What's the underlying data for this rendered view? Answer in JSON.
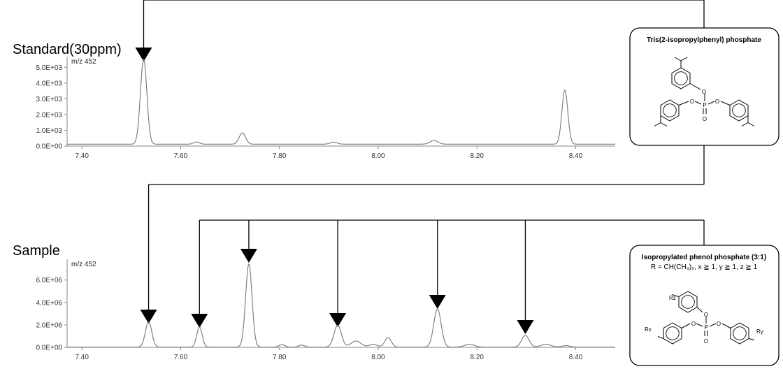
{
  "labels": {
    "standard_title": "Standard(30ppm)",
    "sample_title": "Sample"
  },
  "structures": {
    "standard": {
      "title": "Tris(2-isopropylphenyl) phosphate",
      "atoms": {
        "o": "O",
        "p": "P"
      }
    },
    "sample": {
      "title": "Isopropylated phenol phosphate (3:1)",
      "subtitle": "R = CH(CH₃)₂,  x ≧ 1,  y ≧ 1,  z ≧ 1",
      "atoms": {
        "o": "O",
        "p": "P",
        "rz": "Rz",
        "rx": "Rx",
        "ry": "Ry"
      }
    }
  },
  "chart_data": [
    {
      "type": "line",
      "panel": "standard",
      "title": "Standard(30ppm)",
      "annotation": "m/z 452",
      "xlim": [
        7.37,
        8.48
      ],
      "ylim": [
        0,
        5500
      ],
      "x_ticks": [
        "7.40",
        "7.60",
        "7.80",
        "8.00",
        "8.20",
        "8.40"
      ],
      "y_ticks": [
        "0.0E+00",
        "1.0E+03",
        "2.0E+03",
        "3.0E+03",
        "4.0E+03",
        "5.0E+03"
      ],
      "x_tick_values": [
        7.4,
        7.6,
        7.8,
        8.0,
        8.2,
        8.4
      ],
      "y_tick_values": [
        0,
        1000,
        2000,
        3000,
        4000,
        5000
      ],
      "baseline": 120,
      "peaks": [
        {
          "x": 7.525,
          "height": 5400,
          "width": 0.0065
        },
        {
          "x": 7.632,
          "height": 140,
          "width": 0.006
        },
        {
          "x": 7.725,
          "height": 720,
          "width": 0.0065
        },
        {
          "x": 7.91,
          "height": 130,
          "width": 0.007
        },
        {
          "x": 8.113,
          "height": 230,
          "width": 0.008
        },
        {
          "x": 8.378,
          "height": 3430,
          "width": 0.006
        }
      ],
      "arrow_peaks": [
        7.525
      ]
    },
    {
      "type": "line",
      "panel": "sample",
      "title": "Sample",
      "annotation": "m/z 452",
      "xlim": [
        7.37,
        8.48
      ],
      "ylim": [
        0,
        7600000
      ],
      "x_ticks": [
        "7.40",
        "7.60",
        "7.80",
        "8.00",
        "8.20",
        "8.40"
      ],
      "y_ticks": [
        "0.0E+00",
        "2.0E+06",
        "4.0E+06",
        "6.0E+06"
      ],
      "x_tick_values": [
        7.4,
        7.6,
        7.8,
        8.0,
        8.2,
        8.4
      ],
      "y_tick_values": [
        0,
        2000000,
        4000000,
        6000000
      ],
      "baseline": 20000,
      "peaks": [
        {
          "x": 7.535,
          "height": 2250000,
          "width": 0.0065
        },
        {
          "x": 7.638,
          "height": 1800000,
          "width": 0.0055
        },
        {
          "x": 7.738,
          "height": 7400000,
          "width": 0.0065
        },
        {
          "x": 7.805,
          "height": 220000,
          "width": 0.006
        },
        {
          "x": 7.845,
          "height": 180000,
          "width": 0.006
        },
        {
          "x": 7.918,
          "height": 1950000,
          "width": 0.0075
        },
        {
          "x": 7.955,
          "height": 550000,
          "width": 0.01
        },
        {
          "x": 7.99,
          "height": 250000,
          "width": 0.008
        },
        {
          "x": 8.02,
          "height": 850000,
          "width": 0.0065
        },
        {
          "x": 8.12,
          "height": 3400000,
          "width": 0.0075
        },
        {
          "x": 8.185,
          "height": 250000,
          "width": 0.01
        },
        {
          "x": 8.298,
          "height": 1050000,
          "width": 0.0075
        },
        {
          "x": 8.34,
          "height": 250000,
          "width": 0.01
        },
        {
          "x": 8.38,
          "height": 130000,
          "width": 0.008
        }
      ],
      "arrow_peaks": [
        7.535,
        7.638,
        7.738,
        7.918,
        8.12,
        8.298
      ]
    }
  ]
}
